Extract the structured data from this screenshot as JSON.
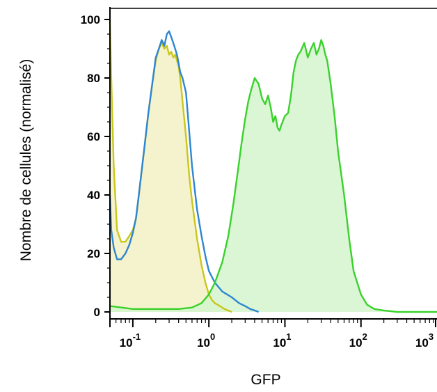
{
  "chart_data": {
    "type": "area",
    "xlabel": "GFP",
    "ylabel": "Nombre de cellules (normalisé)",
    "xscale": "log",
    "xlim": [
      0.05,
      1000
    ],
    "ylim": [
      0,
      100
    ],
    "grid": false,
    "legend": "none",
    "y_ticks": [
      "0",
      "20",
      "40",
      "60",
      "80",
      "100"
    ],
    "x_ticks": [
      {
        "base": "10",
        "exp": "-1",
        "value": 0.1
      },
      {
        "base": "10",
        "exp": "0",
        "value": 1
      },
      {
        "base": "10",
        "exp": "1",
        "value": 10
      },
      {
        "base": "10",
        "exp": "2",
        "value": 100
      },
      {
        "base": "10",
        "exp": "3",
        "value": 1000
      }
    ],
    "series": [
      {
        "color": "#c9c71a",
        "fill": "#f3f1c4",
        "filled": true,
        "x": [
          0.05,
          0.052,
          0.056,
          0.062,
          0.07,
          0.08,
          0.09,
          0.1,
          0.11,
          0.12,
          0.14,
          0.16,
          0.18,
          0.2,
          0.22,
          0.24,
          0.26,
          0.28,
          0.3,
          0.32,
          0.34,
          0.36,
          0.38,
          0.4,
          0.42,
          0.45,
          0.5,
          0.55,
          0.6,
          0.7,
          0.8,
          0.9,
          1.0,
          1.1,
          1.2,
          1.4,
          1.6,
          2.0
        ],
        "y": [
          100,
          80,
          50,
          28,
          24,
          24,
          26,
          28,
          32,
          40,
          55,
          68,
          78,
          86,
          90,
          92,
          90,
          91,
          88,
          89,
          87,
          88,
          86,
          84,
          80,
          72,
          60,
          47,
          38,
          25,
          16,
          10,
          6,
          4,
          3,
          2,
          1,
          0
        ]
      },
      {
        "color": "#2e86d1",
        "fill": "none",
        "filled": false,
        "x": [
          0.05,
          0.052,
          0.056,
          0.062,
          0.07,
          0.08,
          0.09,
          0.1,
          0.11,
          0.12,
          0.14,
          0.16,
          0.18,
          0.2,
          0.22,
          0.24,
          0.26,
          0.28,
          0.3,
          0.32,
          0.34,
          0.36,
          0.38,
          0.4,
          0.42,
          0.45,
          0.5,
          0.55,
          0.6,
          0.7,
          0.8,
          0.9,
          1.0,
          1.2,
          1.5,
          2.0,
          2.5,
          3.0,
          3.5,
          4.0,
          4.5
        ],
        "y": [
          40,
          28,
          22,
          18,
          18,
          20,
          23,
          27,
          32,
          40,
          55,
          68,
          78,
          87,
          90,
          93,
          91,
          95,
          96,
          94,
          92,
          90,
          88,
          85,
          82,
          80,
          75,
          62,
          50,
          35,
          26,
          19,
          14,
          10,
          7,
          5,
          3,
          2,
          1,
          0.5,
          0
        ]
      },
      {
        "color": "#3ad12c",
        "fill": "#d3f5cc",
        "filled": true,
        "x": [
          0.05,
          0.1,
          0.2,
          0.4,
          0.6,
          0.8,
          1.0,
          1.2,
          1.5,
          1.8,
          2.1,
          2.4,
          2.7,
          3.0,
          3.3,
          3.6,
          4.0,
          4.5,
          5.0,
          5.5,
          6.0,
          6.5,
          7.0,
          7.5,
          8.0,
          8.5,
          9.0,
          10,
          11,
          12,
          13,
          14,
          15,
          16,
          18,
          20,
          22,
          24,
          26,
          28,
          30,
          32,
          34,
          36,
          40,
          45,
          50,
          60,
          70,
          80,
          100,
          120,
          150,
          200,
          300,
          500,
          1000
        ],
        "y": [
          2,
          1,
          1,
          1,
          1.5,
          3,
          6,
          10,
          17,
          26,
          37,
          48,
          58,
          66,
          72,
          76,
          80,
          78,
          73,
          71,
          74,
          70,
          65,
          67,
          63,
          62,
          64,
          67,
          68,
          74,
          82,
          86,
          88,
          89,
          92,
          87,
          90,
          92,
          88,
          90,
          93,
          91,
          88,
          86,
          78,
          67,
          55,
          40,
          25,
          14,
          6,
          2.5,
          1,
          0.5,
          0,
          0,
          0
        ]
      }
    ]
  }
}
